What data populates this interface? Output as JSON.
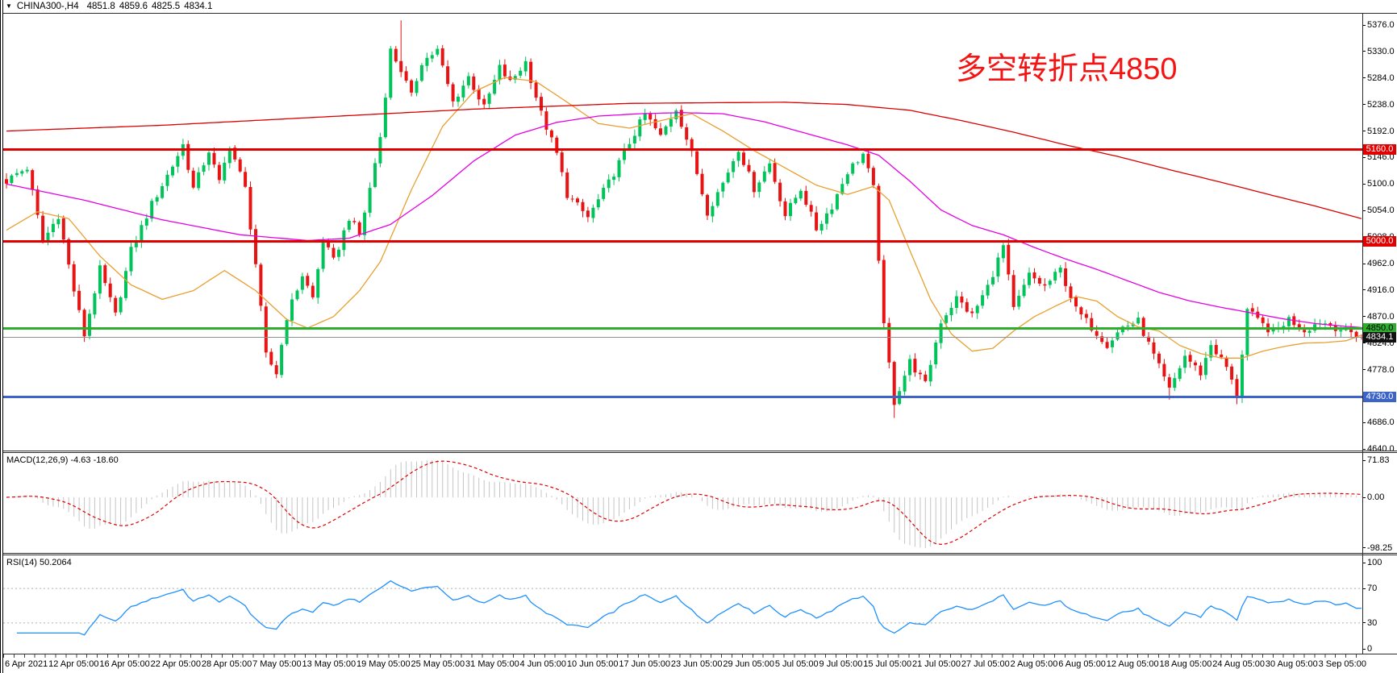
{
  "title": {
    "marker": "▼",
    "symbol": "CHINA300-,H4",
    "open": "4851.8",
    "high": "4859.6",
    "low": "4825.5",
    "close": "4834.1"
  },
  "annotation": {
    "text": "多空转折点4850"
  },
  "colors": {
    "up": "#00C45A",
    "down": "#E81414",
    "bg": "#FFFFFF",
    "border": "#2B2B2B",
    "macd_hist": "#C4C4C4",
    "macd_signal": "#E00000",
    "rsi_line": "#1E90FF",
    "rsi_levels": "#B0B0B0",
    "annotation": "#F51414",
    "last_price_line": "#909090"
  },
  "price_axis": {
    "min": 4640,
    "max": 5376,
    "step": 46,
    "ticks": [
      "5376.0",
      "5330.0",
      "5284.0",
      "5238.0",
      "5192.0",
      "5146.0",
      "5100.0",
      "5054.0",
      "5008.0",
      "4962.0",
      "4916.0",
      "4870.0",
      "4824.0",
      "4778.0",
      "4732.0",
      "4686.0",
      "4640.0"
    ]
  },
  "levels": [
    {
      "price": 5160,
      "label": "5160.0",
      "color": "#E00000",
      "text_color": "#FFFFFF",
      "thickness": 3
    },
    {
      "price": 5000,
      "label": "5000.0",
      "color": "#E00000",
      "text_color": "#FFFFFF",
      "thickness": 3
    },
    {
      "price": 4850,
      "label": "4850.0",
      "color": "#2EAD2E",
      "text_color": "#000000",
      "thickness": 3
    },
    {
      "price": 4730,
      "label": "4730.0",
      "color": "#3C64C8",
      "text_color": "#FFFFFF",
      "thickness": 3
    },
    {
      "price": 4834.1,
      "label": "4834.1",
      "color": "#909090",
      "text_color": "#FFFFFF",
      "thickness": 1,
      "box_color": "#111111",
      "last": true
    }
  ],
  "indicators": {
    "macd": {
      "label": "MACD(12,26,9) -4.63 -18.60",
      "fast": 12,
      "slow": 26,
      "signal": 9,
      "main_value": -4.63,
      "signal_value": -18.6,
      "axis": [
        {
          "v": 71.83,
          "t": "71.83"
        },
        {
          "v": 0,
          "t": "0.00"
        },
        {
          "v": -98.25,
          "t": "-98.25"
        }
      ]
    },
    "rsi": {
      "label": "RSI(14) 50.2064",
      "period": 14,
      "value": 50.2064,
      "levels": [
        70,
        30
      ],
      "axis": [
        {
          "v": 100,
          "t": "100"
        },
        {
          "v": 70,
          "t": "70"
        },
        {
          "v": 30,
          "t": "30"
        },
        {
          "v": 0,
          "t": "0"
        }
      ]
    }
  },
  "time_axis": {
    "labels": [
      "6 Apr 2021",
      "12 Apr 05:00",
      "16 Apr 05:00",
      "22 Apr 05:00",
      "28 Apr 05:00",
      "7 May 05:00",
      "13 May 05:00",
      "19 May 05:00",
      "25 May 05:00",
      "31 May 05:00",
      "4 Jun 05:00",
      "10 Jun 05:00",
      "17 Jun 05:00",
      "23 Jun 05:00",
      "29 Jun 05:00",
      "5 Jul 05:00",
      "9 Jul 05:00",
      "15 Jul 05:00",
      "21 Jul 05:00",
      "27 Jul 05:00",
      "2 Aug 05:00",
      "6 Aug 05:00",
      "12 Aug 05:00",
      "18 Aug 05:00",
      "24 Aug 05:00",
      "30 Aug 05:00",
      "3 Sep 05:00"
    ]
  },
  "chart_data": {
    "type": "candlestick",
    "symbol": "CHINA300-",
    "timeframe": "H4",
    "bars": 262,
    "price_range": [
      4640,
      5384
    ],
    "visible_span": "6 Apr 2021 - 3 Sep 2021",
    "close_anchors": [
      [
        0,
        5105
      ],
      [
        2,
        5118
      ],
      [
        4,
        5128
      ],
      [
        7,
        5000
      ],
      [
        10,
        5046
      ],
      [
        13,
        4915
      ],
      [
        15,
        4838
      ],
      [
        18,
        4952
      ],
      [
        21,
        4872
      ],
      [
        24,
        4985
      ],
      [
        28,
        5065
      ],
      [
        32,
        5132
      ],
      [
        34,
        5168
      ],
      [
        36,
        5092
      ],
      [
        39,
        5158
      ],
      [
        41,
        5102
      ],
      [
        43,
        5168
      ],
      [
        46,
        5092
      ],
      [
        48,
        4962
      ],
      [
        50,
        4802
      ],
      [
        52,
        4772
      ],
      [
        54,
        4870
      ],
      [
        57,
        4942
      ],
      [
        59,
        4902
      ],
      [
        61,
        5002
      ],
      [
        63,
        4966
      ],
      [
        66,
        5042
      ],
      [
        68,
        5012
      ],
      [
        70,
        5092
      ],
      [
        72,
        5182
      ],
      [
        74,
        5332
      ],
      [
        76,
        5298
      ],
      [
        78,
        5252
      ],
      [
        80,
        5312
      ],
      [
        83,
        5332
      ],
      [
        86,
        5242
      ],
      [
        89,
        5286
      ],
      [
        92,
        5232
      ],
      [
        95,
        5302
      ],
      [
        97,
        5276
      ],
      [
        100,
        5312
      ],
      [
        103,
        5222
      ],
      [
        106,
        5152
      ],
      [
        108,
        5082
      ],
      [
        112,
        5042
      ],
      [
        116,
        5102
      ],
      [
        120,
        5172
      ],
      [
        123,
        5222
      ],
      [
        126,
        5182
      ],
      [
        129,
        5232
      ],
      [
        132,
        5152
      ],
      [
        135,
        5052
      ],
      [
        138,
        5102
      ],
      [
        141,
        5162
      ],
      [
        144,
        5092
      ],
      [
        147,
        5136
      ],
      [
        150,
        5046
      ],
      [
        153,
        5092
      ],
      [
        156,
        5022
      ],
      [
        159,
        5062
      ],
      [
        162,
        5122
      ],
      [
        165,
        5152
      ],
      [
        167,
        5092
      ],
      [
        169,
        4852
      ],
      [
        171,
        4722
      ],
      [
        174,
        4792
      ],
      [
        177,
        4752
      ],
      [
        180,
        4862
      ],
      [
        183,
        4902
      ],
      [
        186,
        4872
      ],
      [
        189,
        4922
      ],
      [
        192,
        4992
      ],
      [
        194,
        4882
      ],
      [
        197,
        4942
      ],
      [
        200,
        4922
      ],
      [
        203,
        4952
      ],
      [
        206,
        4882
      ],
      [
        209,
        4852
      ],
      [
        212,
        4822
      ],
      [
        215,
        4852
      ],
      [
        218,
        4862
      ],
      [
        221,
        4802
      ],
      [
        224,
        4742
      ],
      [
        227,
        4802
      ],
      [
        230,
        4772
      ],
      [
        232,
        4822
      ],
      [
        235,
        4782
      ],
      [
        237,
        4732
      ],
      [
        239,
        4882
      ],
      [
        241,
        4862
      ],
      [
        244,
        4842
      ],
      [
        247,
        4866
      ],
      [
        250,
        4846
      ],
      [
        253,
        4862
      ],
      [
        256,
        4852
      ],
      [
        259,
        4842
      ],
      [
        261,
        4834.1
      ]
    ],
    "wick_overrides": [
      {
        "i": 76,
        "high": 5384
      },
      {
        "i": 171,
        "low": 4694
      },
      {
        "i": 52,
        "low": 4763
      },
      {
        "i": 237,
        "low": 4718
      },
      {
        "i": 15,
        "low": 4826
      },
      {
        "i": 224,
        "low": 4726
      }
    ],
    "moving_averages": [
      {
        "name": "ma-fast-orange",
        "color": "#E8A030",
        "anchors": [
          [
            0,
            5020
          ],
          [
            6,
            5052
          ],
          [
            12,
            5040
          ],
          [
            18,
            4975
          ],
          [
            24,
            4925
          ],
          [
            30,
            4900
          ],
          [
            36,
            4915
          ],
          [
            42,
            4950
          ],
          [
            48,
            4915
          ],
          [
            54,
            4865
          ],
          [
            58,
            4850
          ],
          [
            63,
            4870
          ],
          [
            68,
            4915
          ],
          [
            72,
            4965
          ],
          [
            78,
            5090
          ],
          [
            84,
            5200
          ],
          [
            90,
            5260
          ],
          [
            96,
            5285
          ],
          [
            102,
            5278
          ],
          [
            108,
            5242
          ],
          [
            114,
            5205
          ],
          [
            120,
            5197
          ],
          [
            126,
            5210
          ],
          [
            132,
            5222
          ],
          [
            138,
            5192
          ],
          [
            144,
            5158
          ],
          [
            150,
            5128
          ],
          [
            156,
            5098
          ],
          [
            162,
            5082
          ],
          [
            167,
            5096
          ],
          [
            170,
            5072
          ],
          [
            174,
            4985
          ],
          [
            178,
            4900
          ],
          [
            182,
            4840
          ],
          [
            186,
            4810
          ],
          [
            190,
            4815
          ],
          [
            194,
            4845
          ],
          [
            198,
            4870
          ],
          [
            202,
            4888
          ],
          [
            206,
            4905
          ],
          [
            210,
            4897
          ],
          [
            214,
            4870
          ],
          [
            218,
            4852
          ],
          [
            222,
            4845
          ],
          [
            226,
            4820
          ],
          [
            230,
            4806
          ],
          [
            234,
            4798
          ],
          [
            238,
            4798
          ],
          [
            242,
            4810
          ],
          [
            246,
            4818
          ],
          [
            250,
            4824
          ],
          [
            254,
            4825
          ],
          [
            258,
            4828
          ],
          [
            261,
            4838
          ]
        ]
      },
      {
        "name": "ma-mid-magenta",
        "color": "#E400E4",
        "anchors": [
          [
            0,
            5100
          ],
          [
            15,
            5072
          ],
          [
            30,
            5038
          ],
          [
            45,
            5012
          ],
          [
            58,
            5002
          ],
          [
            66,
            5006
          ],
          [
            74,
            5030
          ],
          [
            82,
            5080
          ],
          [
            90,
            5140
          ],
          [
            98,
            5185
          ],
          [
            106,
            5207
          ],
          [
            114,
            5218
          ],
          [
            122,
            5222
          ],
          [
            130,
            5224
          ],
          [
            138,
            5222
          ],
          [
            146,
            5208
          ],
          [
            154,
            5188
          ],
          [
            162,
            5168
          ],
          [
            168,
            5150
          ],
          [
            174,
            5105
          ],
          [
            180,
            5055
          ],
          [
            186,
            5028
          ],
          [
            192,
            5012
          ],
          [
            198,
            4990
          ],
          [
            204,
            4970
          ],
          [
            210,
            4952
          ],
          [
            216,
            4932
          ],
          [
            222,
            4912
          ],
          [
            228,
            4897
          ],
          [
            234,
            4886
          ],
          [
            240,
            4876
          ],
          [
            246,
            4866
          ],
          [
            252,
            4858
          ],
          [
            258,
            4853
          ],
          [
            261,
            4851
          ]
        ]
      },
      {
        "name": "ma-slow-red",
        "color": "#D80000",
        "anchors": [
          [
            0,
            5192
          ],
          [
            30,
            5202
          ],
          [
            60,
            5216
          ],
          [
            90,
            5230
          ],
          [
            120,
            5240
          ],
          [
            150,
            5242
          ],
          [
            162,
            5238
          ],
          [
            174,
            5228
          ],
          [
            184,
            5210
          ],
          [
            194,
            5190
          ],
          [
            204,
            5168
          ],
          [
            214,
            5148
          ],
          [
            224,
            5125
          ],
          [
            234,
            5103
          ],
          [
            244,
            5080
          ],
          [
            252,
            5062
          ],
          [
            261,
            5040
          ]
        ]
      }
    ]
  }
}
